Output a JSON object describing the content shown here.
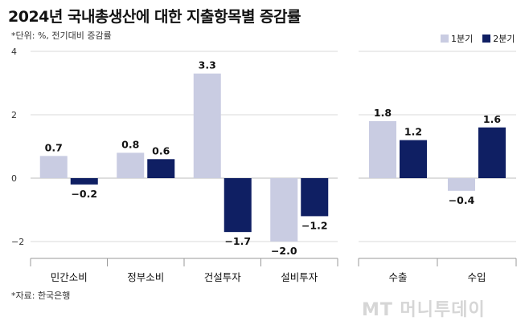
{
  "title": "2024년 국내총생산에 대한 지출항목별 증감률",
  "unit_note": "*단위: %, 전기대비 증감률",
  "source": "*자료: 한국은행",
  "watermark": "MT 머니투데이",
  "colors": {
    "series1": "#c9cce2",
    "series2": "#0f1f63",
    "grid": "#d8d8d8"
  },
  "chart_data": {
    "type": "bar",
    "categories": [
      "민간소비",
      "정부소비",
      "건설투자",
      "설비투자",
      "수출",
      "수입"
    ],
    "series": [
      {
        "name": "1분기",
        "values": [
          0.7,
          0.8,
          3.3,
          -2.0,
          1.8,
          -0.4
        ]
      },
      {
        "name": "2분기",
        "values": [
          -0.2,
          0.6,
          -1.7,
          -1.2,
          1.2,
          1.6
        ]
      }
    ],
    "data_labels": {
      "1분기": [
        "0.7",
        "0.8",
        "3.3",
        "−2.0",
        "1.8",
        "−0.4"
      ],
      "2분기": [
        "−0.2",
        "0.6",
        "−1.7",
        "−1.2",
        "1.2",
        "1.6"
      ]
    },
    "yticks": [
      "4",
      "2",
      "0",
      "−2"
    ],
    "ylim": [
      -2.5,
      4
    ],
    "panels": [
      [
        0,
        1,
        2,
        3
      ],
      [
        4,
        5
      ]
    ],
    "grid": true,
    "legend_position": "top-right"
  }
}
